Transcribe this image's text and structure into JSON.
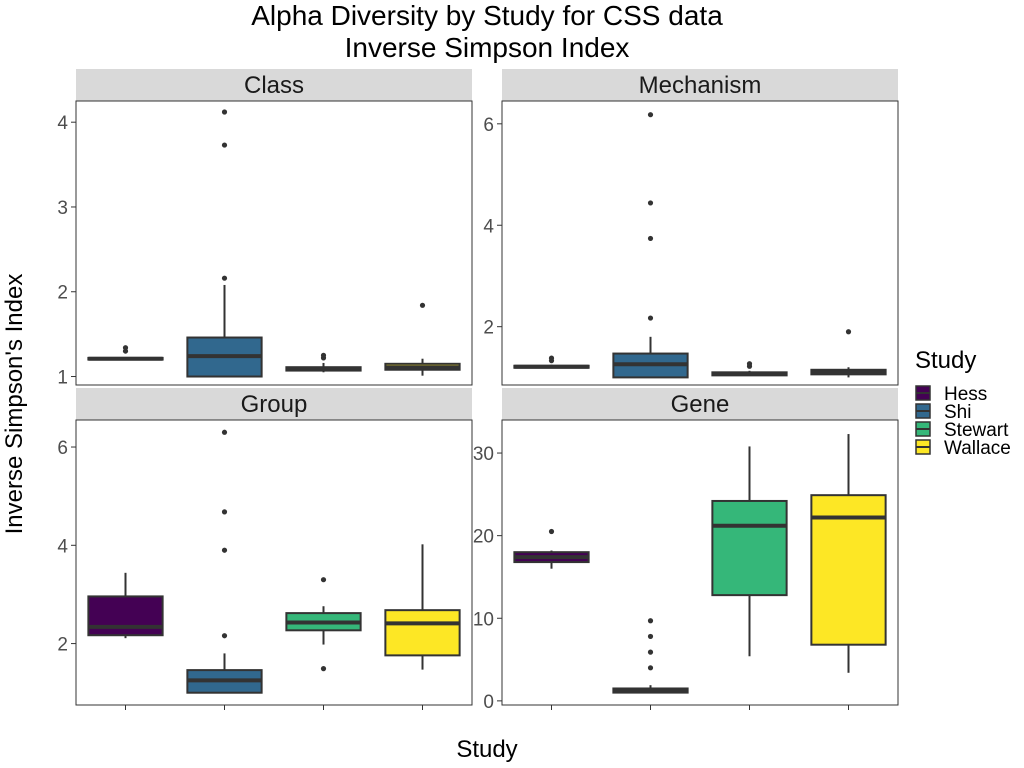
{
  "title_line1": "Alpha Diversity by Study for CSS data",
  "title_line2": "Inverse Simpson Index",
  "xlabel": "Study",
  "ylabel": "Inverse Simpson's Index",
  "legend": {
    "title": "Study",
    "entries": [
      {
        "label": "Hess",
        "color": "#440154"
      },
      {
        "label": "Shi",
        "color": "#31688E"
      },
      {
        "label": "Stewart",
        "color": "#35B779"
      },
      {
        "label": "Wallace",
        "color": "#FDE725"
      }
    ]
  },
  "chart_data": [
    {
      "type": "boxplot",
      "facet": "Class",
      "ylim": [
        0.9,
        4.25
      ],
      "yticks": [
        1,
        2,
        3,
        4
      ],
      "categories": [
        "Hess",
        "Shi",
        "Stewart",
        "Wallace"
      ],
      "boxes": [
        {
          "q1": 1.2,
          "median": 1.21,
          "q3": 1.22,
          "whisker_low": 1.2,
          "whisker_high": 1.23,
          "outliers": [
            1.3,
            1.34
          ]
        },
        {
          "q1": 1.0,
          "median": 1.24,
          "q3": 1.46,
          "whisker_low": 1.0,
          "whisker_high": 2.08,
          "outliers": [
            2.16,
            3.73,
            4.12
          ]
        },
        {
          "q1": 1.07,
          "median": 1.09,
          "q3": 1.11,
          "whisker_low": 1.05,
          "whisker_high": 1.16,
          "outliers": [
            1.22,
            1.25
          ]
        },
        {
          "q1": 1.08,
          "median": 1.11,
          "q3": 1.15,
          "whisker_low": 1.01,
          "whisker_high": 1.21,
          "outliers": [
            1.84
          ]
        }
      ]
    },
    {
      "type": "boxplot",
      "facet": "Mechanism",
      "ylim": [
        0.85,
        6.45
      ],
      "yticks": [
        2,
        4,
        6
      ],
      "categories": [
        "Hess",
        "Shi",
        "Stewart",
        "Wallace"
      ],
      "boxes": [
        {
          "q1": 1.19,
          "median": 1.21,
          "q3": 1.23,
          "whisker_low": 1.19,
          "whisker_high": 1.25,
          "outliers": [
            1.33,
            1.38
          ]
        },
        {
          "q1": 1.0,
          "median": 1.26,
          "q3": 1.47,
          "whisker_low": 1.0,
          "whisker_high": 1.8,
          "outliers": [
            2.17,
            3.74,
            4.44,
            6.18
          ]
        },
        {
          "q1": 1.04,
          "median": 1.07,
          "q3": 1.1,
          "whisker_low": 1.03,
          "whisker_high": 1.13,
          "outliers": [
            1.22,
            1.27
          ]
        },
        {
          "q1": 1.06,
          "median": 1.1,
          "q3": 1.15,
          "whisker_low": 1.0,
          "whisker_high": 1.2,
          "outliers": [
            1.9
          ]
        }
      ]
    },
    {
      "type": "boxplot",
      "facet": "Group",
      "ylim": [
        0.75,
        6.55
      ],
      "yticks": [
        2,
        4,
        6
      ],
      "categories": [
        "Hess",
        "Shi",
        "Stewart",
        "Wallace"
      ],
      "boxes": [
        {
          "q1": 2.17,
          "median": 2.34,
          "q3": 2.96,
          "whisker_low": 2.11,
          "whisker_high": 3.44,
          "outliers": []
        },
        {
          "q1": 1.0,
          "median": 1.25,
          "q3": 1.46,
          "whisker_low": 1.0,
          "whisker_high": 1.8,
          "outliers": [
            2.16,
            3.9,
            4.68,
            6.3
          ]
        },
        {
          "q1": 2.27,
          "median": 2.43,
          "q3": 2.62,
          "whisker_low": 1.98,
          "whisker_high": 2.76,
          "outliers": [
            1.49,
            3.3
          ]
        },
        {
          "q1": 1.76,
          "median": 2.41,
          "q3": 2.68,
          "whisker_low": 1.47,
          "whisker_high": 4.02,
          "outliers": []
        }
      ]
    },
    {
      "type": "boxplot",
      "facet": "Gene",
      "ylim": [
        -0.5,
        34
      ],
      "yticks": [
        0,
        10,
        20,
        30
      ],
      "categories": [
        "Hess",
        "Shi",
        "Stewart",
        "Wallace"
      ],
      "boxes": [
        {
          "q1": 16.8,
          "median": 17.4,
          "q3": 18.0,
          "whisker_low": 16.0,
          "whisker_high": 18.2,
          "outliers": [
            20.5
          ]
        },
        {
          "q1": 1.0,
          "median": 1.2,
          "q3": 1.5,
          "whisker_low": 0.9,
          "whisker_high": 1.9,
          "outliers": [
            4.0,
            5.9,
            7.8,
            9.7
          ]
        },
        {
          "q1": 12.8,
          "median": 21.2,
          "q3": 24.2,
          "whisker_low": 5.4,
          "whisker_high": 30.8,
          "outliers": []
        },
        {
          "q1": 6.8,
          "median": 22.2,
          "q3": 24.9,
          "whisker_low": 3.4,
          "whisker_high": 32.3,
          "outliers": []
        }
      ]
    }
  ]
}
